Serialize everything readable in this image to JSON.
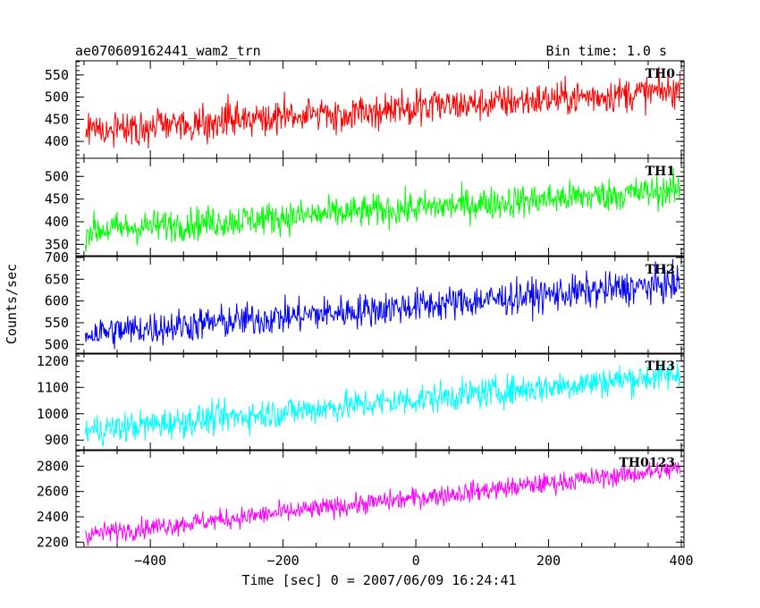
{
  "header": {
    "left": "ae070609162441_wam2_trn",
    "right": "Bin time: 1.0 s"
  },
  "chart_data": {
    "type": "line",
    "xlabel": "Time [sec] 0 = 2007/06/09 16:24:41",
    "ylabel": "Counts/sec",
    "xlim": [
      -512,
      404
    ],
    "x_major_ticks": [
      -400,
      -200,
      0,
      200,
      400
    ],
    "x_tick_labels": [
      "−400",
      "−200",
      "0",
      "200",
      "400"
    ],
    "x_data_range": [
      -498,
      398
    ],
    "bin_time": 1.0,
    "grid": false,
    "legend": "none",
    "panels": [
      {
        "label": "TH0",
        "color": "#ff0000",
        "ylim": [
          362,
          582
        ],
        "yticks": [
          400,
          450,
          500,
          550
        ],
        "ytick_labels": [
          "400",
          "450",
          "500",
          "550"
        ],
        "trend_start": 425,
        "trend_end": 515,
        "noise": 28
      },
      {
        "label": "TH1",
        "color": "#00ff00",
        "ylim": [
          325,
          540
        ],
        "yticks": [
          350,
          400,
          450,
          500
        ],
        "ytick_labels": [
          "350",
          "400",
          "450",
          "500"
        ],
        "trend_start": 380,
        "trend_end": 470,
        "noise": 26
      },
      {
        "label": "TH2",
        "color": "#0000ff",
        "ylim": [
          478,
          702
        ],
        "yticks": [
          500,
          550,
          600,
          650,
          700
        ],
        "ytick_labels": [
          "500",
          "550",
          "600",
          "650",
          "700"
        ],
        "trend_start": 525,
        "trend_end": 640,
        "noise": 28
      },
      {
        "label": "TH3",
        "color": "#00ffff",
        "ylim": [
          860,
          1230
        ],
        "yticks": [
          900,
          1000,
          1100,
          1200
        ],
        "ytick_labels": [
          "900",
          "1000",
          "1100",
          "1200"
        ],
        "trend_start": 935,
        "trend_end": 1150,
        "noise": 42
      },
      {
        "label": "TH0123",
        "color": "#ff00ff",
        "ylim": [
          2160,
          2930
        ],
        "yticks": [
          2200,
          2400,
          2600,
          2800
        ],
        "ytick_labels": [
          "2200",
          "2400",
          "2600",
          "2800"
        ],
        "trend_start": 2260,
        "trend_end": 2780,
        "noise": 58
      }
    ]
  }
}
